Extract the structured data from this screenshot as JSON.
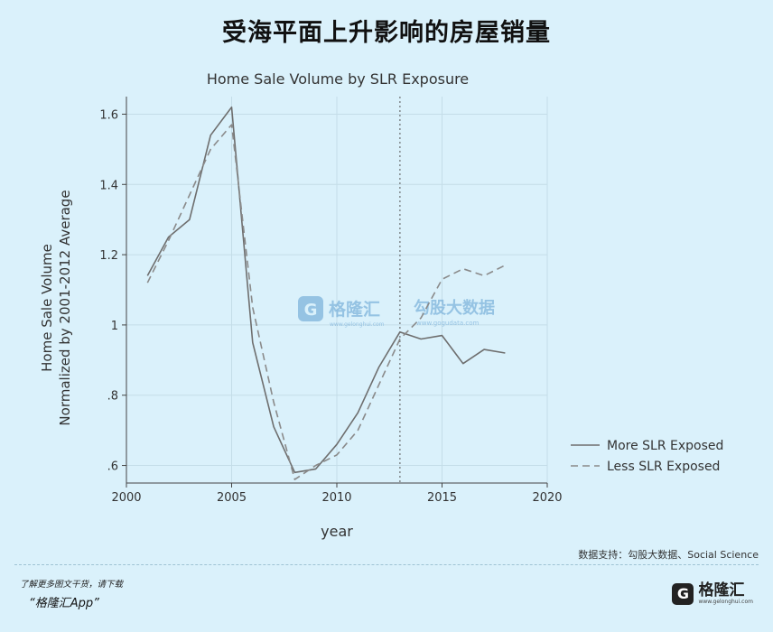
{
  "page": {
    "title": "受海平面上升影响的房屋销量",
    "source": "数据支持：勾股大数据、Social Science",
    "footer_note": "了解更多图文干货，请下载",
    "footer_app": "“格隆汇App”",
    "footer_brand": "格隆汇",
    "footer_brand_url": "www.gelonghui.com"
  },
  "watermark": {
    "brand_left": "格隆汇",
    "brand_left_url": "www.gelonghui.com",
    "brand_right": "勾股大数据",
    "brand_right_url": "www.gogudata.com"
  },
  "chart_data": {
    "type": "line",
    "title": "Home Sale Volume by SLR Exposure",
    "xlabel": "year",
    "ylabel_line1": "Home Sale Volume",
    "ylabel_line2": "Normalized by 2001-2012 Average",
    "xlim": [
      2000,
      2020
    ],
    "ylim": [
      0.55,
      1.65
    ],
    "x_ticks": [
      2000,
      2005,
      2010,
      2015,
      2020
    ],
    "x_tick_labels": [
      "2000",
      "2005",
      "2010",
      "2015",
      "2020"
    ],
    "y_ticks": [
      0.6,
      0.8,
      1.0,
      1.2,
      1.4,
      1.6
    ],
    "y_tick_labels": [
      ".6",
      ".8",
      "1",
      "1.2",
      "1.4",
      "1.6"
    ],
    "vline_x": 2013,
    "grid": true,
    "legend_position": "right",
    "series": [
      {
        "name": "More SLR Exposed",
        "style": "solid",
        "color": "#6e6e6e",
        "x": [
          2001,
          2002,
          2003,
          2004,
          2005,
          2006,
          2007,
          2008,
          2009,
          2010,
          2011,
          2012,
          2013,
          2014,
          2015,
          2016,
          2017,
          2018
        ],
        "y": [
          1.14,
          1.25,
          1.3,
          1.54,
          1.62,
          0.95,
          0.71,
          0.58,
          0.59,
          0.66,
          0.75,
          0.88,
          0.98,
          0.96,
          0.97,
          0.89,
          0.93,
          0.92
        ]
      },
      {
        "name": "Less SLR Exposed",
        "style": "dashed",
        "color": "#8a8a8a",
        "x": [
          2001,
          2002,
          2003,
          2004,
          2005,
          2006,
          2007,
          2008,
          2009,
          2010,
          2011,
          2012,
          2013,
          2014,
          2015,
          2016,
          2017,
          2018
        ],
        "y": [
          1.12,
          1.24,
          1.37,
          1.5,
          1.57,
          1.05,
          0.78,
          0.56,
          0.6,
          0.63,
          0.7,
          0.83,
          0.96,
          1.02,
          1.13,
          1.16,
          1.14,
          1.17
        ]
      }
    ]
  }
}
